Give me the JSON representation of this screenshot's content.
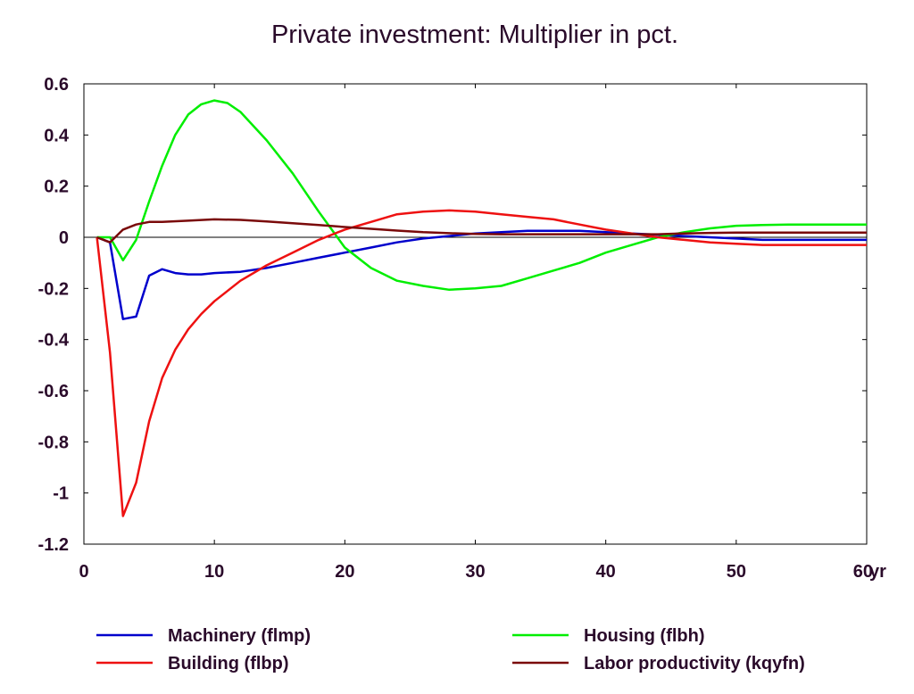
{
  "chart_data": {
    "type": "line",
    "title": "Private investment: Multiplier in pct.",
    "xlabel": "",
    "ylabel": "",
    "x_unit_label": "yr",
    "xlim": [
      0,
      60
    ],
    "ylim": [
      -1.2,
      0.6
    ],
    "x_ticks": [
      0,
      10,
      20,
      30,
      40,
      50,
      60
    ],
    "y_ticks": [
      0.6,
      0.4,
      0.2,
      0,
      -0.2,
      -0.4,
      -0.6,
      -0.8,
      -1,
      -1.2
    ],
    "y_tick_labels": [
      "0.6",
      "0.4",
      "0.2",
      "0",
      "-0.2",
      "-0.4",
      "-0.6",
      "-0.8",
      "-1",
      "-1.2"
    ],
    "grid": false,
    "zero_line": true,
    "legend_position": "bottom",
    "series": [
      {
        "name": "Machinery (flmp)",
        "color": "#0000cc",
        "points": [
          [
            1,
            0
          ],
          [
            2,
            -0.02
          ],
          [
            3,
            -0.32
          ],
          [
            4,
            -0.31
          ],
          [
            5,
            -0.15
          ],
          [
            6,
            -0.125
          ],
          [
            7,
            -0.14
          ],
          [
            8,
            -0.145
          ],
          [
            9,
            -0.145
          ],
          [
            10,
            -0.14
          ],
          [
            12,
            -0.135
          ],
          [
            14,
            -0.12
          ],
          [
            16,
            -0.1
          ],
          [
            18,
            -0.08
          ],
          [
            20,
            -0.06
          ],
          [
            22,
            -0.04
          ],
          [
            24,
            -0.02
          ],
          [
            26,
            -0.005
          ],
          [
            28,
            0.005
          ],
          [
            30,
            0.015
          ],
          [
            32,
            0.02
          ],
          [
            34,
            0.025
          ],
          [
            36,
            0.025
          ],
          [
            38,
            0.025
          ],
          [
            40,
            0.02
          ],
          [
            42,
            0.015
          ],
          [
            44,
            0.01
          ],
          [
            46,
            0.005
          ],
          [
            48,
            0
          ],
          [
            50,
            -0.005
          ],
          [
            52,
            -0.01
          ],
          [
            54,
            -0.01
          ],
          [
            56,
            -0.01
          ],
          [
            58,
            -0.01
          ],
          [
            60,
            -0.01
          ]
        ]
      },
      {
        "name": "Housing (flbh)",
        "color": "#00ee00",
        "points": [
          [
            1,
            0
          ],
          [
            2,
            0
          ],
          [
            3,
            -0.09
          ],
          [
            4,
            -0.01
          ],
          [
            5,
            0.14
          ],
          [
            6,
            0.28
          ],
          [
            7,
            0.4
          ],
          [
            8,
            0.48
          ],
          [
            9,
            0.52
          ],
          [
            10,
            0.535
          ],
          [
            11,
            0.525
          ],
          [
            12,
            0.49
          ],
          [
            14,
            0.38
          ],
          [
            16,
            0.25
          ],
          [
            18,
            0.1
          ],
          [
            20,
            -0.04
          ],
          [
            22,
            -0.12
          ],
          [
            24,
            -0.17
          ],
          [
            26,
            -0.19
          ],
          [
            28,
            -0.205
          ],
          [
            30,
            -0.2
          ],
          [
            32,
            -0.19
          ],
          [
            34,
            -0.16
          ],
          [
            36,
            -0.13
          ],
          [
            38,
            -0.1
          ],
          [
            40,
            -0.06
          ],
          [
            42,
            -0.03
          ],
          [
            44,
            0
          ],
          [
            46,
            0.02
          ],
          [
            48,
            0.035
          ],
          [
            50,
            0.045
          ],
          [
            52,
            0.048
          ],
          [
            54,
            0.05
          ],
          [
            56,
            0.05
          ],
          [
            58,
            0.05
          ],
          [
            60,
            0.05
          ]
        ]
      },
      {
        "name": "Building (flbp)",
        "color": "#ee1111",
        "points": [
          [
            1,
            0
          ],
          [
            2,
            -0.45
          ],
          [
            3,
            -1.09
          ],
          [
            4,
            -0.96
          ],
          [
            5,
            -0.72
          ],
          [
            6,
            -0.55
          ],
          [
            7,
            -0.44
          ],
          [
            8,
            -0.36
          ],
          [
            9,
            -0.3
          ],
          [
            10,
            -0.25
          ],
          [
            12,
            -0.17
          ],
          [
            14,
            -0.11
          ],
          [
            16,
            -0.06
          ],
          [
            18,
            -0.01
          ],
          [
            20,
            0.03
          ],
          [
            22,
            0.06
          ],
          [
            24,
            0.09
          ],
          [
            26,
            0.1
          ],
          [
            28,
            0.105
          ],
          [
            30,
            0.1
          ],
          [
            32,
            0.09
          ],
          [
            34,
            0.08
          ],
          [
            36,
            0.07
          ],
          [
            38,
            0.05
          ],
          [
            40,
            0.03
          ],
          [
            42,
            0.015
          ],
          [
            44,
            0
          ],
          [
            46,
            -0.01
          ],
          [
            48,
            -0.02
          ],
          [
            50,
            -0.025
          ],
          [
            52,
            -0.03
          ],
          [
            54,
            -0.03
          ],
          [
            56,
            -0.03
          ],
          [
            58,
            -0.03
          ],
          [
            60,
            -0.03
          ]
        ]
      },
      {
        "name": "Labor productivity (kqyfn)",
        "color": "#7a0a0a",
        "points": [
          [
            1,
            0
          ],
          [
            2,
            -0.02
          ],
          [
            3,
            0.03
          ],
          [
            4,
            0.05
          ],
          [
            5,
            0.06
          ],
          [
            6,
            0.06
          ],
          [
            8,
            0.065
          ],
          [
            10,
            0.07
          ],
          [
            12,
            0.068
          ],
          [
            14,
            0.062
          ],
          [
            16,
            0.055
          ],
          [
            18,
            0.048
          ],
          [
            20,
            0.04
          ],
          [
            22,
            0.033
          ],
          [
            24,
            0.026
          ],
          [
            26,
            0.02
          ],
          [
            28,
            0.016
          ],
          [
            30,
            0.013
          ],
          [
            32,
            0.012
          ],
          [
            34,
            0.012
          ],
          [
            36,
            0.012
          ],
          [
            38,
            0.012
          ],
          [
            40,
            0.012
          ],
          [
            42,
            0.012
          ],
          [
            44,
            0.012
          ],
          [
            46,
            0.015
          ],
          [
            48,
            0.017
          ],
          [
            50,
            0.018
          ],
          [
            52,
            0.018
          ],
          [
            54,
            0.018
          ],
          [
            56,
            0.018
          ],
          [
            58,
            0.018
          ],
          [
            60,
            0.018
          ]
        ]
      }
    ]
  }
}
